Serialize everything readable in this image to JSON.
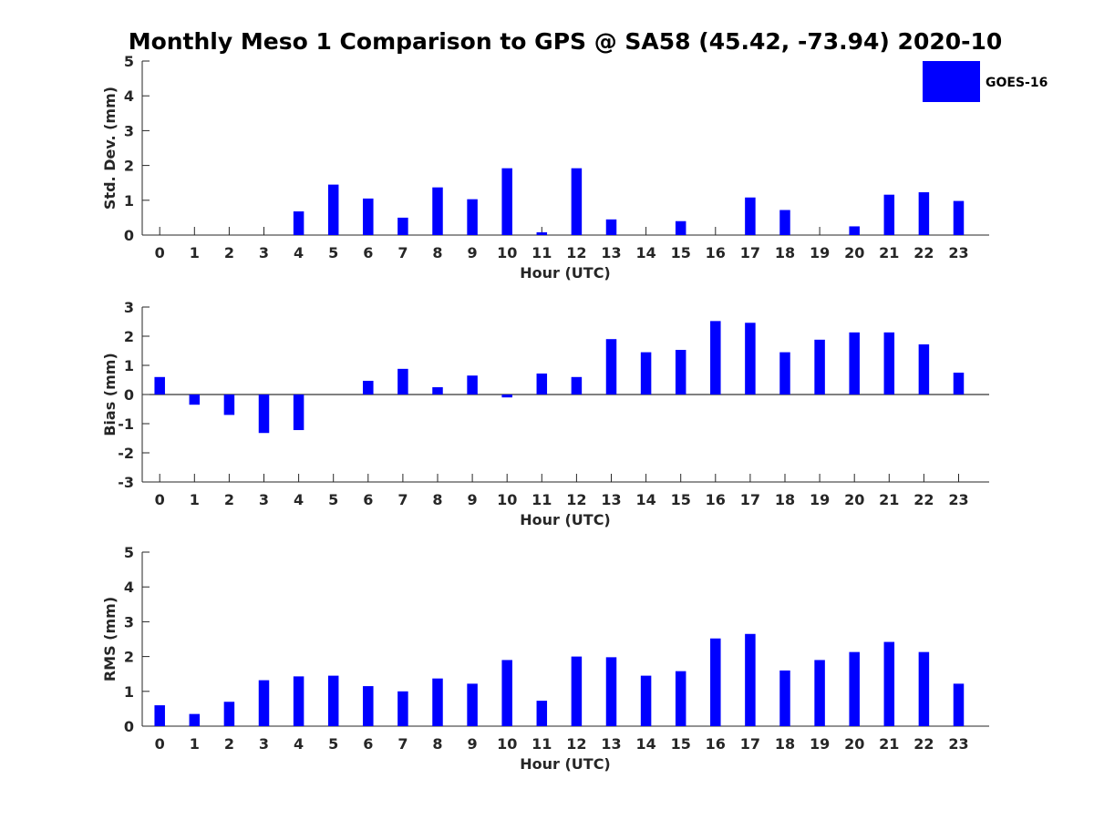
{
  "title": "Monthly Meso 1 Comparison to GPS @ SA58 (45.42, -73.94) 2020-10",
  "bar_color": "#0000ff",
  "legend": {
    "label": "GOES-16",
    "color": "#0000ff",
    "placement": "top-right"
  },
  "chart_data": [
    {
      "type": "bar",
      "xlabel": "Hour (UTC)",
      "ylabel": "Std. Dev. (mm)",
      "ylim": [
        0,
        5
      ],
      "yticks": [
        0,
        1,
        2,
        3,
        4,
        5
      ],
      "categories": [
        "0",
        "1",
        "2",
        "3",
        "4",
        "5",
        "6",
        "7",
        "8",
        "9",
        "10",
        "11",
        "12",
        "13",
        "14",
        "15",
        "16",
        "17",
        "18",
        "19",
        "20",
        "21",
        "22",
        "23"
      ],
      "series": [
        {
          "name": "GOES-16",
          "values": [
            0,
            0,
            0,
            0,
            0.68,
            1.45,
            1.05,
            0.5,
            1.37,
            1.03,
            1.92,
            0.08,
            1.92,
            0.45,
            0,
            0.4,
            0,
            1.08,
            0.72,
            0,
            0.25,
            1.16,
            1.23,
            0.98
          ]
        }
      ]
    },
    {
      "type": "bar",
      "xlabel": "Hour (UTC)",
      "ylabel": "Bias (mm)",
      "ylim": [
        -3,
        3
      ],
      "yticks": [
        -3,
        -2,
        -1,
        0,
        1,
        2,
        3
      ],
      "categories": [
        "0",
        "1",
        "2",
        "3",
        "4",
        "5",
        "6",
        "7",
        "8",
        "9",
        "10",
        "11",
        "12",
        "13",
        "14",
        "15",
        "16",
        "17",
        "18",
        "19",
        "20",
        "21",
        "22",
        "23"
      ],
      "series": [
        {
          "name": "GOES-16",
          "values": [
            0.6,
            -0.35,
            -0.7,
            -1.32,
            -1.22,
            0,
            0.47,
            0.88,
            0.25,
            0.65,
            -0.1,
            0.72,
            0.6,
            1.9,
            1.45,
            1.53,
            2.52,
            2.46,
            1.45,
            1.88,
            2.13,
            2.13,
            1.72,
            0.75
          ]
        }
      ]
    },
    {
      "type": "bar",
      "xlabel": "Hour (UTC)",
      "ylabel": "RMS (mm)",
      "ylim": [
        0,
        5
      ],
      "yticks": [
        0,
        1,
        2,
        3,
        4,
        5
      ],
      "categories": [
        "0",
        "1",
        "2",
        "3",
        "4",
        "5",
        "6",
        "7",
        "8",
        "9",
        "10",
        "11",
        "12",
        "13",
        "14",
        "15",
        "16",
        "17",
        "18",
        "19",
        "20",
        "21",
        "22",
        "23"
      ],
      "series": [
        {
          "name": "GOES-16",
          "values": [
            0.6,
            0.35,
            0.7,
            1.32,
            1.43,
            1.45,
            1.15,
            1.0,
            1.37,
            1.22,
            1.9,
            0.73,
            2.0,
            1.98,
            1.45,
            1.58,
            2.52,
            2.65,
            1.6,
            1.9,
            2.13,
            2.42,
            2.13,
            1.22
          ]
        }
      ]
    }
  ]
}
